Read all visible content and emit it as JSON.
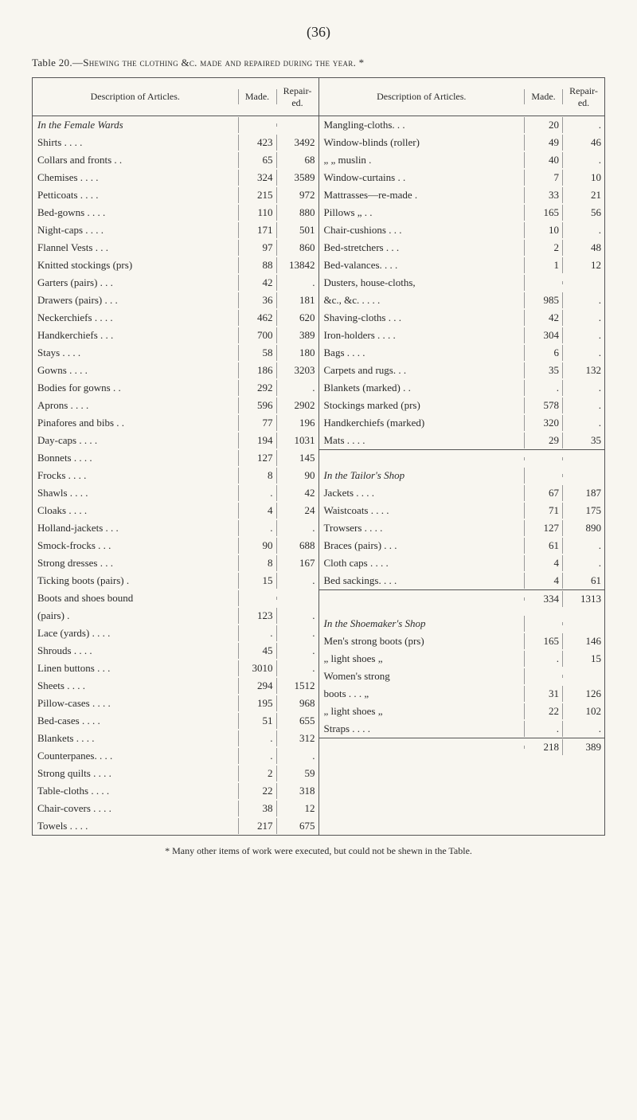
{
  "page_number": "(36)",
  "table_caption_prefix": "Table 20.—",
  "table_caption_smallcaps": "Shewing the clothing &c. made and repaired during the year.",
  "table_caption_suffix": " *",
  "headers": {
    "desc": "Description of Articles.",
    "made": "Made.",
    "repair": "Repair-ed."
  },
  "left_section_title": "In the Female Wards",
  "left_rows": [
    {
      "desc": "Shirts . . . .",
      "made": "423",
      "repair": "3492"
    },
    {
      "desc": "Collars and fronts . .",
      "made": "65",
      "repair": "68"
    },
    {
      "desc": "Chemises . . . .",
      "made": "324",
      "repair": "3589"
    },
    {
      "desc": "Petticoats . . . .",
      "made": "215",
      "repair": "972"
    },
    {
      "desc": "Bed-gowns . . . .",
      "made": "110",
      "repair": "880"
    },
    {
      "desc": "Night-caps . . . .",
      "made": "171",
      "repair": "501"
    },
    {
      "desc": "Flannel Vests . . .",
      "made": "97",
      "repair": "860"
    },
    {
      "desc": "Knitted stockings (prs)",
      "made": "88",
      "repair": "13842"
    },
    {
      "desc": "Garters (pairs) . . .",
      "made": "42",
      "repair": "."
    },
    {
      "desc": "Drawers (pairs) . . .",
      "made": "36",
      "repair": "181"
    },
    {
      "desc": "Neckerchiefs . . . .",
      "made": "462",
      "repair": "620"
    },
    {
      "desc": "Handkerchiefs . . .",
      "made": "700",
      "repair": "389"
    },
    {
      "desc": "Stays . . . .",
      "made": "58",
      "repair": "180"
    },
    {
      "desc": "Gowns . . . .",
      "made": "186",
      "repair": "3203"
    },
    {
      "desc": "Bodies for gowns . .",
      "made": "292",
      "repair": "."
    },
    {
      "desc": "Aprons . . . .",
      "made": "596",
      "repair": "2902"
    },
    {
      "desc": "Pinafores and bibs . .",
      "made": "77",
      "repair": "196"
    },
    {
      "desc": "Day-caps . . . .",
      "made": "194",
      "repair": "1031"
    },
    {
      "desc": "Bonnets . . . .",
      "made": "127",
      "repair": "145"
    },
    {
      "desc": "Frocks . . . .",
      "made": "8",
      "repair": "90"
    },
    {
      "desc": "Shawls . . . .",
      "made": ".",
      "repair": "42"
    },
    {
      "desc": "Cloaks . . . .",
      "made": "4",
      "repair": "24"
    },
    {
      "desc": "Holland-jackets . . .",
      "made": ".",
      "repair": "."
    },
    {
      "desc": "Smock-frocks . . .",
      "made": "90",
      "repair": "688"
    },
    {
      "desc": "Strong dresses . . .",
      "made": "8",
      "repair": "167"
    },
    {
      "desc": "Ticking boots (pairs) .",
      "made": "15",
      "repair": "."
    },
    {
      "desc": "Boots and shoes bound",
      "made": "",
      "repair": ""
    },
    {
      "desc": "(pairs) .",
      "made": "123",
      "repair": "."
    },
    {
      "desc": "Lace (yards) . . . .",
      "made": ".",
      "repair": "."
    },
    {
      "desc": "Shrouds . . . .",
      "made": "45",
      "repair": "."
    },
    {
      "desc": "Linen buttons . . .",
      "made": "3010",
      "repair": "."
    },
    {
      "desc": "Sheets . . . .",
      "made": "294",
      "repair": "1512"
    },
    {
      "desc": "Pillow-cases . . . .",
      "made": "195",
      "repair": "968"
    },
    {
      "desc": "Bed-cases . . . .",
      "made": "51",
      "repair": "655"
    },
    {
      "desc": "Blankets . . . .",
      "made": ".",
      "repair": "312"
    },
    {
      "desc": "Counterpanes. . . .",
      "made": ".",
      "repair": "."
    },
    {
      "desc": "Strong quilts . . . .",
      "made": "2",
      "repair": "59"
    },
    {
      "desc": "Table-cloths . . . .",
      "made": "22",
      "repair": "318"
    },
    {
      "desc": "Chair-covers . . . .",
      "made": "38",
      "repair": "12"
    },
    {
      "desc": "Towels . . . .",
      "made": "217",
      "repair": "675"
    }
  ],
  "right_rows_1": [
    {
      "desc": "Mangling-cloths. . .",
      "made": "20",
      "repair": "."
    },
    {
      "desc": "Window-blinds (roller)",
      "made": "49",
      "repair": "46"
    },
    {
      "desc": "„ „ muslin .",
      "made": "40",
      "repair": "."
    },
    {
      "desc": "Window-curtains . .",
      "made": "7",
      "repair": "10"
    },
    {
      "desc": "Mattrasses—re-made .",
      "made": "33",
      "repair": "21"
    },
    {
      "desc": "Pillows „ . .",
      "made": "165",
      "repair": "56"
    },
    {
      "desc": "Chair-cushions . . .",
      "made": "10",
      "repair": "."
    },
    {
      "desc": "Bed-stretchers . . .",
      "made": "2",
      "repair": "48"
    },
    {
      "desc": "Bed-valances. . . .",
      "made": "1",
      "repair": "12"
    },
    {
      "desc": "Dusters, house-cloths,",
      "made": "",
      "repair": ""
    },
    {
      "desc": "&c., &c. . . . .",
      "made": "985",
      "repair": "."
    },
    {
      "desc": "Shaving-cloths . . .",
      "made": "42",
      "repair": "."
    },
    {
      "desc": "Iron-holders . . . .",
      "made": "304",
      "repair": "."
    },
    {
      "desc": "Bags . . . .",
      "made": "6",
      "repair": "."
    },
    {
      "desc": "Carpets and rugs. . .",
      "made": "35",
      "repair": "132"
    },
    {
      "desc": "Blankets (marked) . .",
      "made": ".",
      "repair": "."
    },
    {
      "desc": "Stockings marked (prs)",
      "made": "578",
      "repair": "."
    },
    {
      "desc": "Handkerchiefs (marked)",
      "made": "320",
      "repair": "."
    },
    {
      "desc": "Mats . . . .",
      "made": "29",
      "repair": "35"
    }
  ],
  "right_section_2_title": "In the Tailor's Shop",
  "right_rows_2": [
    {
      "desc": "Jackets . . . .",
      "made": "67",
      "repair": "187"
    },
    {
      "desc": "Waistcoats . . . .",
      "made": "71",
      "repair": "175"
    },
    {
      "desc": "Trowsers . . . .",
      "made": "127",
      "repair": "890"
    },
    {
      "desc": "Braces (pairs) . . .",
      "made": "61",
      "repair": "."
    },
    {
      "desc": "Cloth caps . . . .",
      "made": "4",
      "repair": "."
    },
    {
      "desc": "Bed sackings. . . .",
      "made": "4",
      "repair": "61"
    }
  ],
  "right_total_2": {
    "made": "334",
    "repair": "1313"
  },
  "right_section_3_title": "In the Shoemaker's Shop",
  "right_rows_3": [
    {
      "desc": "Men's strong boots (prs)",
      "made": "165",
      "repair": "146"
    },
    {
      "desc": "„ light shoes „",
      "made": ".",
      "repair": "15"
    },
    {
      "desc": "Women's strong",
      "made": "",
      "repair": ""
    },
    {
      "desc": "boots . . . „",
      "made": "31",
      "repair": "126"
    },
    {
      "desc": "„ light shoes „",
      "made": "22",
      "repair": "102"
    },
    {
      "desc": "Straps . . . .",
      "made": ".",
      "repair": "."
    }
  ],
  "right_total_3": {
    "made": "218",
    "repair": "389"
  },
  "footnote": "* Many other items of work were executed, but could not be shewn in the Table."
}
